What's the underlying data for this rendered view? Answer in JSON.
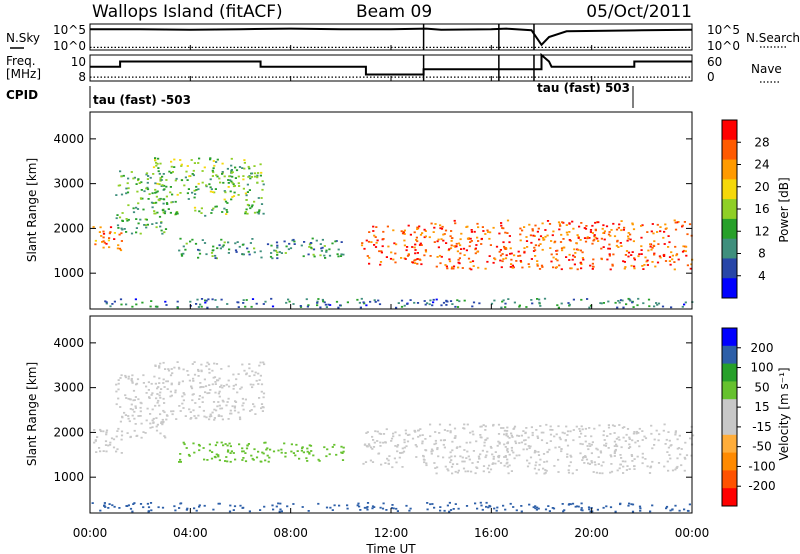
{
  "header": {
    "station": "Wallops Island (fitACF)",
    "beam": "Beam 09",
    "date": "05/Oct/2011"
  },
  "left_labels": {
    "nsky": "N.Sky",
    "freq_line1": "Freq.",
    "freq_line2": "[MHz]",
    "cpid": "CPID"
  },
  "right_labels": {
    "nsearch": "N.Search",
    "nave": "Nave"
  },
  "cpid_labels": {
    "left": "tau (fast) -503",
    "right": "tau (fast) 503"
  },
  "x_axis": {
    "title": "Time UT",
    "ticks": [
      "00:00",
      "04:00",
      "08:00",
      "12:00",
      "16:00",
      "20:00",
      "00:00"
    ]
  },
  "colors": {
    "power": [
      "#0000ff",
      "#2846a8",
      "#3f8f7d",
      "#27a02a",
      "#8fcf26",
      "#f5d80a",
      "#ff9a00",
      "#ff5a00",
      "#ff0000"
    ],
    "velocity": [
      "#ff0000",
      "#ff5200",
      "#ff8a00",
      "#ffad3a",
      "#c8c8c8",
      "#c8c8c8",
      "#66c12e",
      "#27a02a",
      "#2d5fa8",
      "#0000ff"
    ]
  },
  "chart_data": [
    {
      "type": "line",
      "title": "N.Sky / N.Search",
      "x_range_hours": [
        0,
        24
      ],
      "y_ticks_left": [
        "10^5",
        "10^0"
      ],
      "y_ticks_right": [
        "10^5",
        "10^0"
      ],
      "series": [
        {
          "name": "N.Sky",
          "x": [
            0,
            2,
            4,
            6,
            8,
            10,
            12,
            13.4,
            14,
            16,
            16.6,
            17.6,
            18.0,
            18.3,
            19,
            22,
            24
          ],
          "y": [
            0.8,
            0.8,
            0.78,
            0.8,
            0.82,
            0.8,
            0.8,
            0.82,
            0.78,
            0.8,
            0.82,
            0.76,
            0.2,
            0.5,
            0.72,
            0.76,
            0.78
          ]
        },
        {
          "name": "N.Search",
          "x": [
            0,
            24
          ],
          "y": [
            0.1,
            0.1
          ]
        }
      ]
    },
    {
      "type": "line",
      "title": "Freq. / Nave",
      "x_range_hours": [
        0,
        24
      ],
      "y_ticks_left": [
        "10",
        "8"
      ],
      "y_ticks_right": [
        "60",
        "0"
      ],
      "series": [
        {
          "name": "Freq.",
          "x": [
            0,
            1.2,
            1.2,
            6.8,
            6.8,
            11.0,
            11.0,
            13.3,
            13.3,
            18.0,
            18.0,
            18.3,
            18.4,
            21.7,
            21.7,
            24
          ],
          "y": [
            0.55,
            0.55,
            0.75,
            0.75,
            0.55,
            0.55,
            0.25,
            0.25,
            0.45,
            0.45,
            1.0,
            0.75,
            0.55,
            0.55,
            0.75,
            0.75
          ]
        },
        {
          "name": "Nave",
          "x": [
            0,
            24
          ],
          "y": [
            0.15,
            0.15
          ]
        }
      ]
    },
    {
      "type": "scatter",
      "title": "Power [dB]",
      "xlabel": "Time UT",
      "ylabel": "Slant Range [km]",
      "xlim_hours": [
        0,
        24
      ],
      "ylim": [
        200,
        4600
      ],
      "y_ticks": [
        1000,
        2000,
        3000,
        4000
      ],
      "colorbar": {
        "label": "Power [dB]",
        "ticks": [
          "4",
          "8",
          "12",
          "16",
          "20",
          "24",
          "28"
        ]
      },
      "echo_regions": [
        {
          "t": [
            0.1,
            1.3
          ],
          "r": [
            1500,
            2100
          ],
          "value": 24
        },
        {
          "t": [
            1.0,
            3.0
          ],
          "r": [
            1900,
            3300
          ],
          "value": 12
        },
        {
          "t": [
            2.5,
            6.9
          ],
          "r": [
            2300,
            3600
          ],
          "value": 14
        },
        {
          "t": [
            3.5,
            10.1
          ],
          "r": [
            1350,
            1800
          ],
          "value": 10
        },
        {
          "t": [
            10.8,
            13.4
          ],
          "r": [
            1200,
            2100
          ],
          "value": 26
        },
        {
          "t": [
            13.5,
            24.0
          ],
          "r": [
            1100,
            2200
          ],
          "value": 26
        },
        {
          "t": [
            0.0,
            24.0
          ],
          "r": [
            250,
            450
          ],
          "value": 8
        }
      ]
    },
    {
      "type": "scatter",
      "title": "Velocity [m s^-1]",
      "xlabel": "Time UT",
      "ylabel": "Slant Range [km]",
      "xlim_hours": [
        0,
        24
      ],
      "ylim": [
        200,
        4600
      ],
      "y_ticks": [
        1000,
        2000,
        3000,
        4000
      ],
      "colorbar": {
        "label": "Velocity [m s⁻¹]",
        "ticks": [
          "200",
          "100",
          "50",
          "15",
          "-15",
          "-50",
          "-100",
          "-200"
        ]
      },
      "echo_regions": [
        {
          "t": [
            0.1,
            1.3
          ],
          "r": [
            1500,
            2100
          ],
          "value": 0
        },
        {
          "t": [
            1.0,
            3.0
          ],
          "r": [
            1900,
            3300
          ],
          "value": 0
        },
        {
          "t": [
            2.5,
            6.9
          ],
          "r": [
            2300,
            3600
          ],
          "value": 5
        },
        {
          "t": [
            3.5,
            10.1
          ],
          "r": [
            1350,
            1800
          ],
          "value": 40
        },
        {
          "t": [
            10.8,
            13.4
          ],
          "r": [
            1200,
            2100
          ],
          "value": 0
        },
        {
          "t": [
            13.5,
            24.0
          ],
          "r": [
            1100,
            2200
          ],
          "value": 0
        },
        {
          "t": [
            0.0,
            24.0
          ],
          "r": [
            250,
            450
          ],
          "value": 150
        }
      ]
    }
  ]
}
